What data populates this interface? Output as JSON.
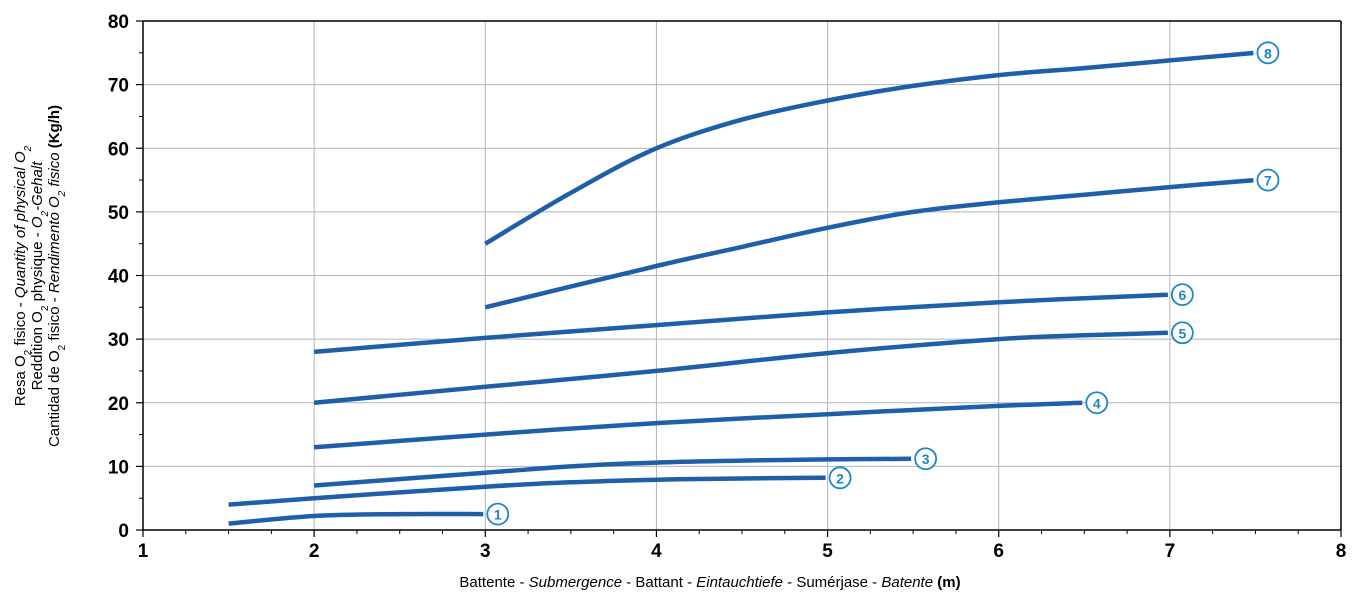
{
  "chart_data": {
    "type": "line",
    "xlim": [
      1,
      8
    ],
    "ylim": [
      0,
      80
    ],
    "x_ticks": [
      "1",
      "2",
      "3",
      "4",
      "5",
      "6",
      "7",
      "8"
    ],
    "y_ticks": [
      "0",
      "10",
      "20",
      "30",
      "40",
      "50",
      "60",
      "70",
      "80"
    ],
    "grid": true,
    "xlabel": {
      "p1": "Battente - ",
      "p2": "Submergence",
      "p3": " - Battant - ",
      "p4": "Eintauchtiefe",
      "p5": " - Sumérjase - ",
      "p6": "Batente",
      "p7": " (m)"
    },
    "ylabel": {
      "line1": {
        "p1": "Resa O",
        "s1": "2",
        "p2": " fisico - ",
        "p3": "Quantity of physical O",
        "s2": "2"
      },
      "line2": {
        "p1": "Reddition O",
        "s1": "2",
        "p2": " physique - ",
        "p3": "O",
        "s2": "2",
        "p4": "-Gehalt"
      },
      "line3": {
        "p1": "Cantidad de O",
        "s1": "2",
        "p2": " fisico - ",
        "p3": "Rendimento O",
        "s2": "2",
        "p4": " fisico",
        "p5": " (Kg/h)"
      }
    },
    "series_color": "#1f5fa8",
    "marker_color": "#1b87c9",
    "series": [
      {
        "name": "1",
        "x": [
          1.5,
          2.0,
          2.5,
          3.0
        ],
        "y": [
          1,
          2.2,
          2.5,
          2.5
        ]
      },
      {
        "name": "2",
        "x": [
          1.5,
          2.0,
          3.0,
          3.5,
          4.0,
          4.5,
          5.0
        ],
        "y": [
          4,
          5,
          6.8,
          7.5,
          7.9,
          8.1,
          8.2
        ]
      },
      {
        "name": "3",
        "x": [
          2.0,
          3.0,
          3.5,
          4.0,
          4.5,
          5.0,
          5.5
        ],
        "y": [
          7,
          9,
          10,
          10.6,
          10.9,
          11.1,
          11.2
        ]
      },
      {
        "name": "4",
        "x": [
          2.0,
          3.0,
          4.0,
          5.0,
          6.0,
          6.5
        ],
        "y": [
          13,
          15,
          16.8,
          18.2,
          19.5,
          20
        ]
      },
      {
        "name": "5",
        "x": [
          2.0,
          3.0,
          4.0,
          5.0,
          6.0,
          6.5,
          7.0
        ],
        "y": [
          20,
          22.5,
          25,
          27.8,
          30,
          30.6,
          31
        ]
      },
      {
        "name": "6",
        "x": [
          2.0,
          3.0,
          4.0,
          5.0,
          6.0,
          7.0
        ],
        "y": [
          28,
          30.2,
          32.2,
          34.2,
          35.8,
          37
        ]
      },
      {
        "name": "7",
        "x": [
          3.0,
          4.0,
          4.5,
          5.0,
          5.5,
          6.0,
          6.5,
          7.0,
          7.5
        ],
        "y": [
          35,
          41.5,
          44.5,
          47.5,
          50,
          51.5,
          52.7,
          53.9,
          55
        ]
      },
      {
        "name": "8",
        "x": [
          3.0,
          3.5,
          4.0,
          4.5,
          5.0,
          5.5,
          6.0,
          6.5,
          7.0,
          7.5
        ],
        "y": [
          45,
          53,
          60,
          64.5,
          67.5,
          69.8,
          71.5,
          72.6,
          73.8,
          75
        ]
      }
    ]
  }
}
